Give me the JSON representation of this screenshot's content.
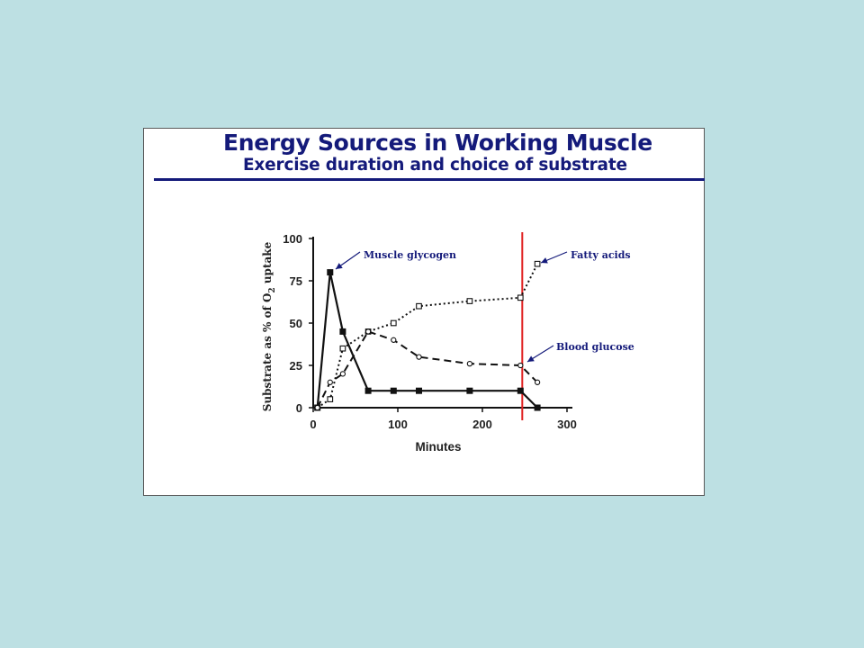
{
  "figure": {
    "title": "Energy Sources in Working Muscle",
    "subtitle": "Exercise duration and choice of substrate"
  },
  "chart_data": {
    "type": "line",
    "xlabel": "Minutes",
    "ylabel": "Substrate as % of O",
    "ylabel_sub": "2",
    "ylabel_end": " uptake",
    "xlim": [
      0,
      300
    ],
    "ylim": [
      0,
      100
    ],
    "x_ticks": [
      0,
      100,
      200,
      300
    ],
    "y_ticks": [
      0,
      25,
      50,
      75,
      100
    ],
    "grid": false,
    "series": [
      {
        "name": "Muscle glycogen",
        "marker": "filled-square",
        "line": "solid",
        "points": [
          [
            5,
            0
          ],
          [
            20,
            80
          ],
          [
            35,
            45
          ],
          [
            65,
            10
          ],
          [
            95,
            10
          ],
          [
            125,
            10
          ],
          [
            185,
            10
          ],
          [
            245,
            10
          ],
          [
            265,
            0
          ]
        ]
      },
      {
        "name": "Fatty acids",
        "marker": "open-square",
        "line": "dotted",
        "points": [
          [
            5,
            0
          ],
          [
            20,
            5
          ],
          [
            35,
            35
          ],
          [
            65,
            45
          ],
          [
            95,
            50
          ],
          [
            125,
            60
          ],
          [
            185,
            63
          ],
          [
            245,
            65
          ],
          [
            265,
            85
          ]
        ]
      },
      {
        "name": "Blood glucose",
        "marker": "open-circle",
        "line": "dashed",
        "points": [
          [
            5,
            0
          ],
          [
            20,
            15
          ],
          [
            35,
            20
          ],
          [
            65,
            45
          ],
          [
            95,
            40
          ],
          [
            125,
            30
          ],
          [
            185,
            26
          ],
          [
            245,
            25
          ],
          [
            265,
            15
          ]
        ]
      }
    ],
    "annotations": [
      {
        "text": "Muscle glycogen",
        "series": "Muscle glycogen"
      },
      {
        "text": "Fatty acids",
        "series": "Fatty acids"
      },
      {
        "text": "Blood glucose",
        "series": "Blood glucose"
      }
    ],
    "vertical_line": {
      "x": 245,
      "color": "#e02020"
    },
    "colors": {
      "series": "#111111",
      "annotation": "#141a7a",
      "marker_line": "#e02020"
    }
  }
}
